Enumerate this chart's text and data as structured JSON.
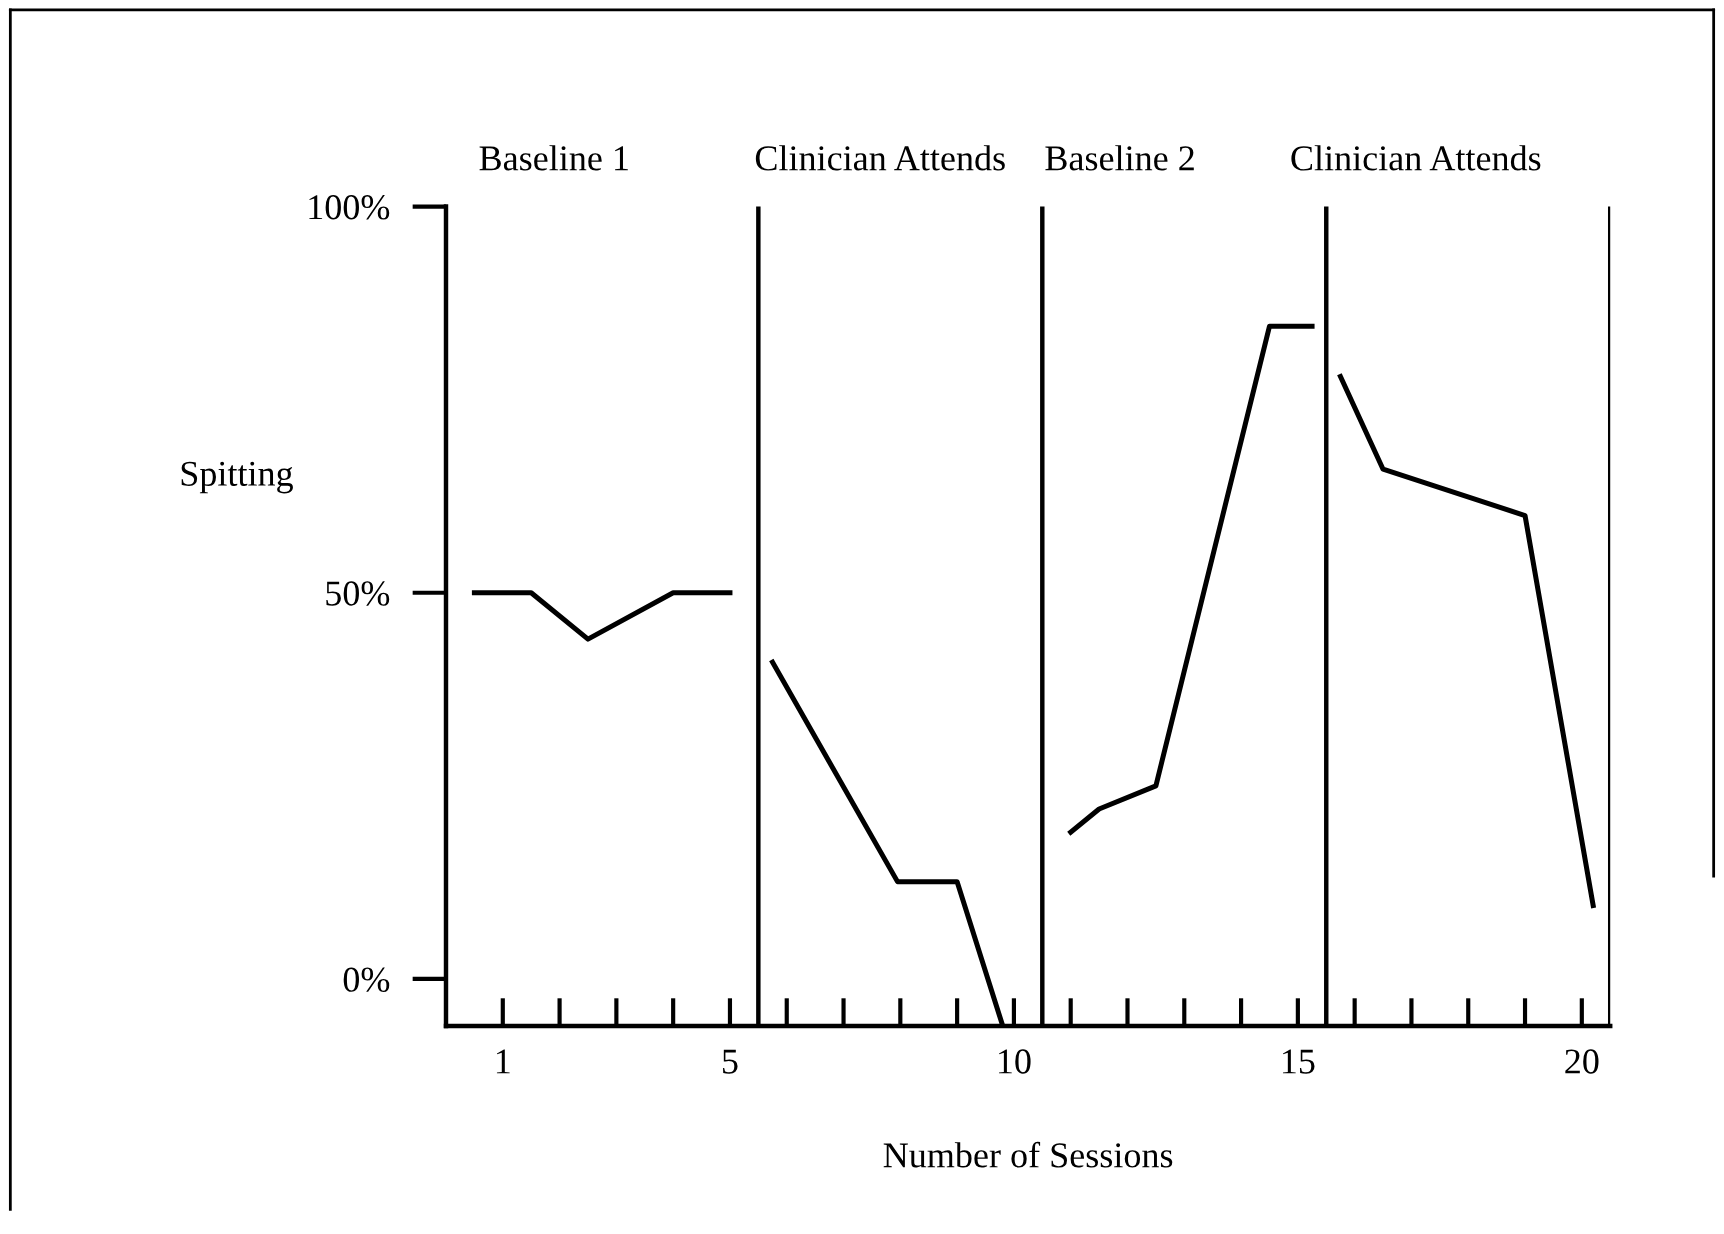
{
  "chart_data": {
    "type": "line",
    "xlabel": "Number of Sessions",
    "ylabel": "Spitting",
    "series": [
      {
        "color": "#000000",
        "x": [
          0.5,
          1.5,
          2.5,
          4,
          5
        ],
        "values": [
          50,
          50,
          44,
          50,
          50
        ]
      },
      {
        "color": "#000000",
        "x": [
          5.75,
          7.95,
          9,
          9.8
        ],
        "values": [
          41,
          12.6,
          12.6,
          -6
        ]
      },
      {
        "color": "#000000",
        "x": [
          11,
          11.5,
          12.5,
          14.5,
          15.25
        ],
        "values": [
          19,
          22,
          25,
          84.5,
          84.5
        ]
      },
      {
        "color": "#000000",
        "x": [
          15.75,
          16.5,
          19,
          20.2
        ],
        "values": [
          78,
          66,
          60,
          9.5
        ]
      }
    ],
    "xlim": [
      0,
      20.5
    ],
    "ylim": [
      -6.1,
      100
    ],
    "xticks": [
      1,
      {
        "value": 2,
        "label": null
      },
      {
        "value": 3,
        "label": null
      },
      {
        "value": 4,
        "label": null
      },
      5,
      {
        "value": 6,
        "label": null
      },
      {
        "value": 7,
        "label": null
      },
      {
        "value": 8,
        "label": null
      },
      {
        "value": 9,
        "label": null
      },
      10,
      {
        "value": 11,
        "label": null
      },
      {
        "value": 12,
        "label": null
      },
      {
        "value": 13,
        "label": null
      },
      {
        "value": 14,
        "label": null
      },
      15,
      {
        "value": 16,
        "label": null
      },
      {
        "value": 17,
        "label": null
      },
      {
        "value": 18,
        "label": null
      },
      {
        "value": 19,
        "label": null
      },
      20
    ],
    "yticks": [
      {
        "value": 0,
        "label": "0%"
      },
      {
        "value": 50,
        "label": "50%"
      },
      {
        "value": 100,
        "label": "100%"
      }
    ],
    "ref_lines": [
      {
        "axis": "x",
        "value": 5.5,
        "color": "#000000"
      },
      {
        "axis": "x",
        "value": 10.5,
        "color": "#000000"
      },
      {
        "axis": "x",
        "value": 15.5,
        "color": "#000000"
      },
      {
        "axis": "x",
        "value": 20.5,
        "color": "#000000"
      }
    ],
    "annotations": [
      "Baseline 1",
      "Clinician Attends",
      "Baseline 2",
      "Clinician Attends"
    ],
    "marker": "none",
    "line_style": "solid",
    "grid": false,
    "legend": false
  }
}
